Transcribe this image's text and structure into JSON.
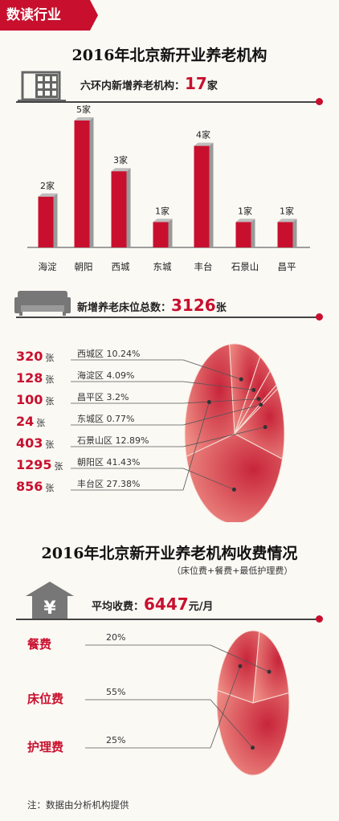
{
  "tag": "数读行业",
  "title1": "2016年北京新开业养老机构",
  "new_institutions": {
    "label": "六环内新增养老机构：",
    "value": "17",
    "unit": "家"
  },
  "new_beds": {
    "label": "新增养老床位总数：",
    "value": "3126",
    "unit": "张"
  },
  "title2": "2016年北京新开业养老机构收费情况",
  "title2_note": "（床位费+餐费+最低护理费）",
  "avg_fee": {
    "label": "平均收费：",
    "value": "6447",
    "unit": "元/月"
  },
  "footnote": "注：数据由分析机构提供",
  "colors": {
    "accent": "#c8102e",
    "pie_light": "#ef8f86",
    "pie_dark": "#c8253a"
  },
  "chart_data": [
    {
      "type": "bar",
      "categories": [
        "海淀",
        "朝阳",
        "西城",
        "东城",
        "丰台",
        "石景山",
        "昌平"
      ],
      "values": [
        2,
        5,
        3,
        1,
        4,
        1,
        1
      ],
      "value_labels": [
        "2家",
        "5家",
        "3家",
        "1家",
        "4家",
        "1家",
        "1家"
      ],
      "ylim": [
        0,
        5
      ]
    },
    {
      "type": "pie",
      "labels": [
        "西城区",
        "海淀区",
        "昌平区",
        "东城区",
        "石景山区",
        "朝阳区",
        "丰台区"
      ],
      "values": [
        320,
        128,
        100,
        24,
        403,
        1295,
        856
      ],
      "percent_labels": [
        "10.24%",
        "4.09%",
        "3.2%",
        "0.77%",
        "12.89%",
        "41.43%",
        "27.38%"
      ],
      "unit": "张"
    },
    {
      "type": "pie",
      "labels": [
        "餐费",
        "床位费",
        "护理费"
      ],
      "values": [
        20,
        55,
        25
      ],
      "percent_labels": [
        "20%",
        "55%",
        "25%"
      ]
    }
  ]
}
